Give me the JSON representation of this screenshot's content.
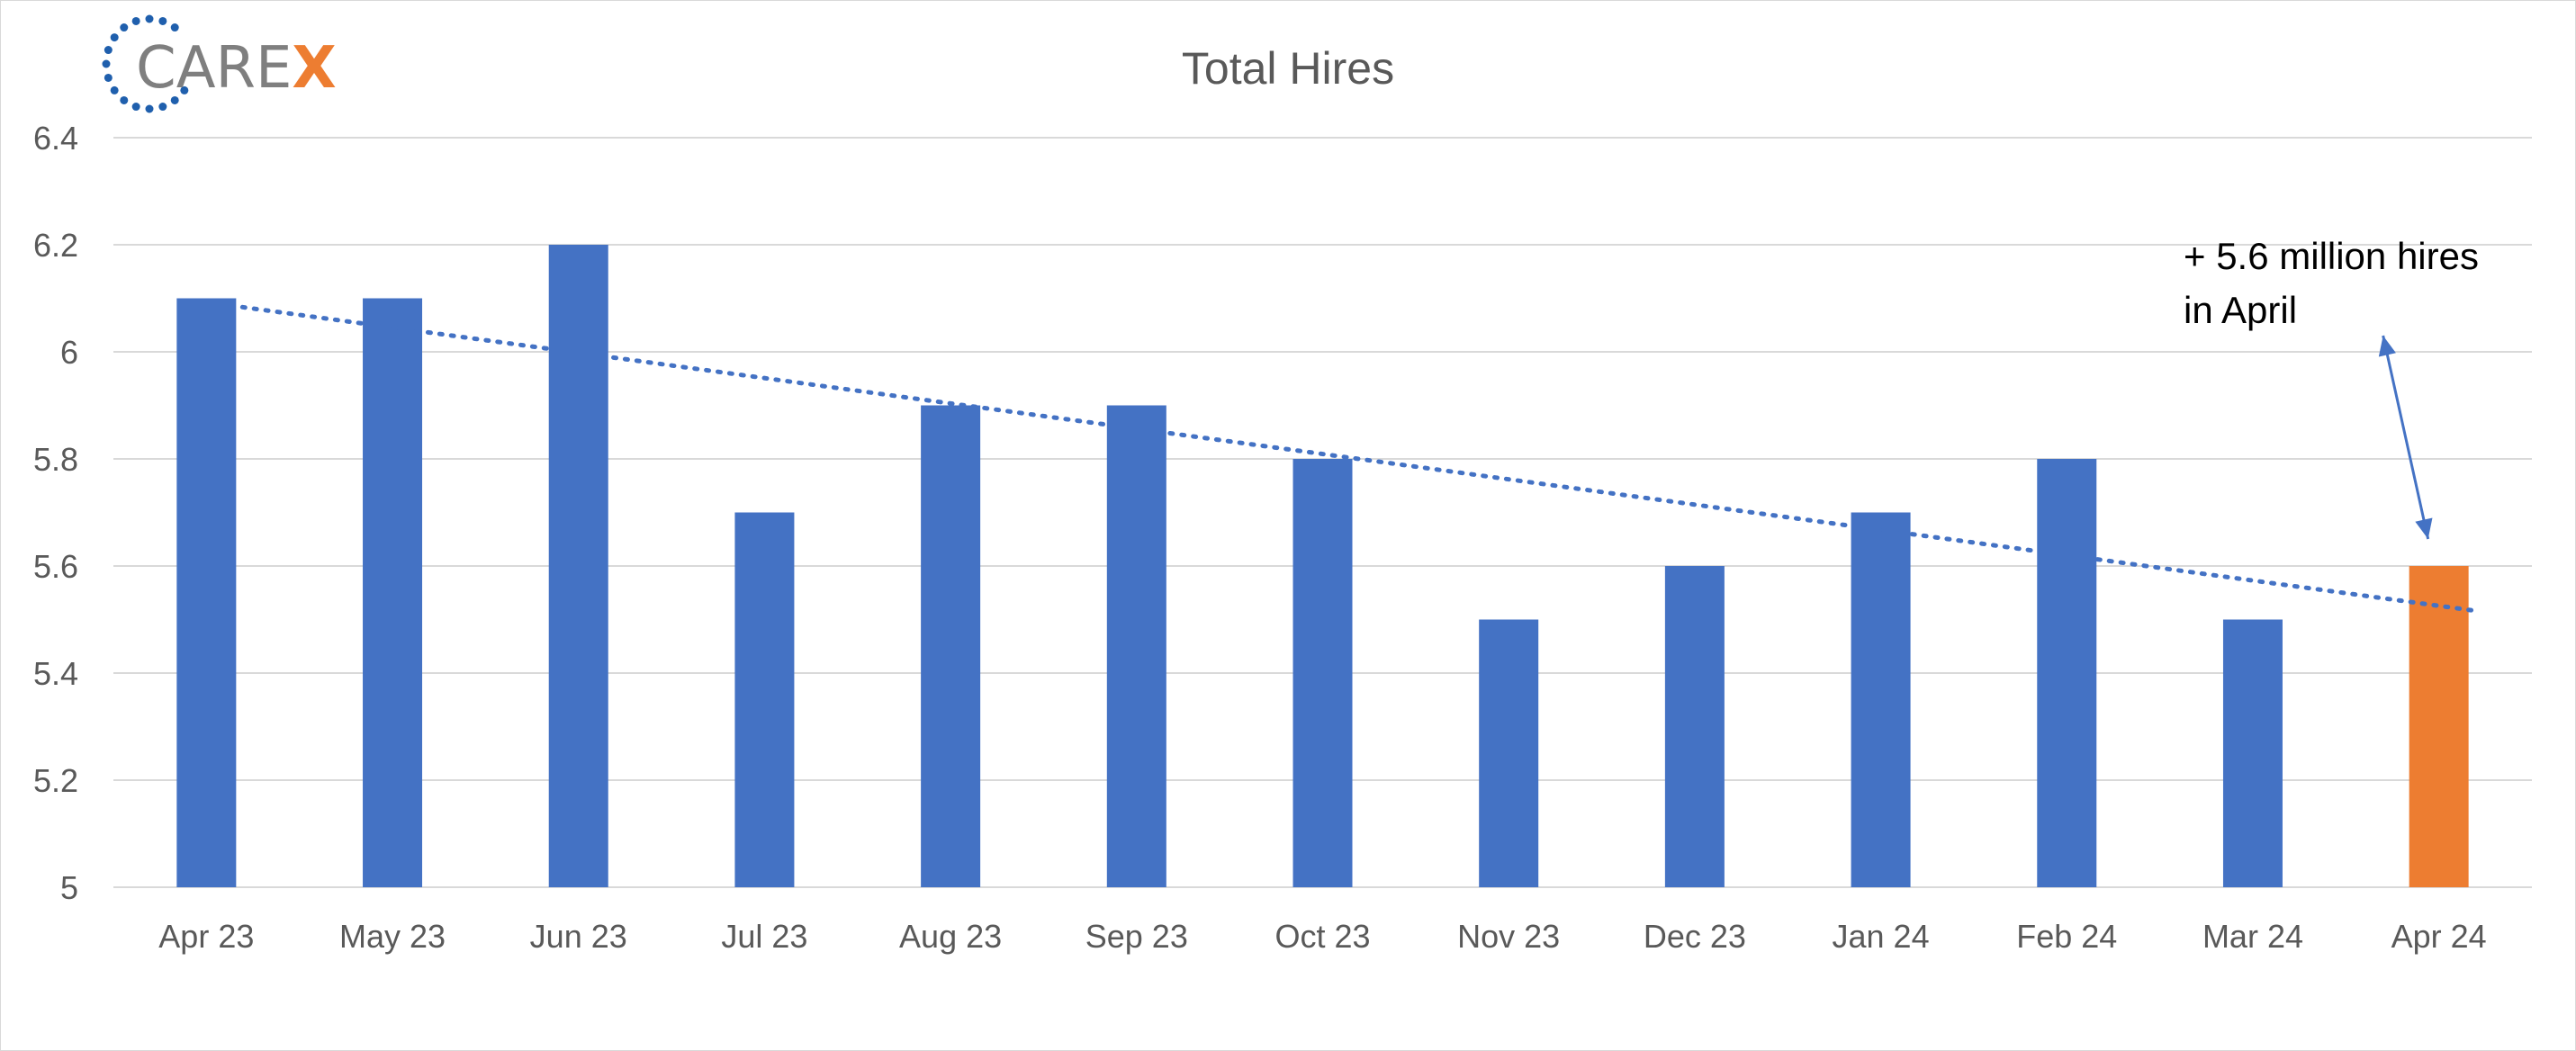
{
  "logo": {
    "text_main": "CARE",
    "text_accent": "X",
    "color_main": "#7f7f7f",
    "color_accent": "#ed7d31",
    "dot_color": "#1f5fad"
  },
  "chart_data": {
    "type": "bar",
    "title": "Total Hires",
    "xlabel": "",
    "ylabel": "",
    "categories": [
      "Apr 23",
      "May 23",
      "Jun 23",
      "Jul 23",
      "Aug 23",
      "Sep 23",
      "Oct 23",
      "Nov 23",
      "Dec 23",
      "Jan 24",
      "Feb 24",
      "Mar 24",
      "Apr 24"
    ],
    "values": [
      6.1,
      6.1,
      6.2,
      5.7,
      5.9,
      5.9,
      5.8,
      5.5,
      5.6,
      5.7,
      5.8,
      5.5,
      5.6
    ],
    "ylim": [
      5,
      6.4
    ],
    "yticks": [
      "5",
      "5.2",
      "5.4",
      "5.6",
      "5.8",
      "6",
      "6.2",
      "6.4"
    ],
    "grid": true,
    "trendline": {
      "style": "dotted",
      "type": "linear"
    },
    "bar_color": "#4472c4",
    "highlight_color": "#ed7d31",
    "highlight_category": "Apr 24",
    "annotation": {
      "lines": [
        "+ 5.6 million hires",
        "in April"
      ],
      "target": "Apr 24"
    }
  }
}
